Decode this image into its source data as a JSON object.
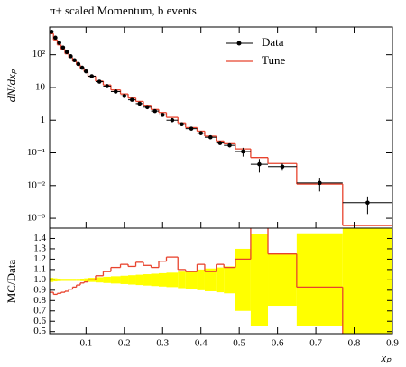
{
  "chart_data": {
    "type": "histogram-ratio",
    "title": "π± scaled Momentum, b events",
    "ylabel": "dN/dxₚ",
    "ratio_ylabel": "MC/Data",
    "xlabel": "xₚ",
    "xlim": [
      0.005,
      0.9
    ],
    "xticks": [
      0.1,
      0.2,
      0.3,
      0.4,
      0.5,
      0.6,
      0.7,
      0.8,
      0.9
    ],
    "ylim": [
      0.0005,
      700
    ],
    "log_y": true,
    "yticks": [
      {
        "value": 100,
        "label": "10²"
      },
      10,
      1,
      {
        "value": 0.1,
        "label": "10⁻¹"
      },
      {
        "value": 0.01,
        "label": "10⁻²"
      },
      {
        "value": 0.001,
        "label": "10⁻³"
      }
    ],
    "ratio_ylim": [
      0.48,
      1.5
    ],
    "ratio_yticks": [
      0.5,
      0.6,
      0.7,
      0.8,
      0.9,
      {
        "value": 1.0,
        "label": "1.0"
      },
      1.1,
      1.2,
      1.3,
      1.4
    ],
    "band_color": "#ffff00",
    "series": [
      {
        "name": "Data",
        "color": "#000000",
        "x": [
          0.01,
          0.02,
          0.03,
          0.04,
          0.05,
          0.06,
          0.07,
          0.08,
          0.09,
          0.1,
          0.115,
          0.135,
          0.155,
          0.1775,
          0.2,
          0.22,
          0.24,
          0.26,
          0.28,
          0.3,
          0.325,
          0.35,
          0.375,
          0.4,
          0.425,
          0.45,
          0.475,
          0.51,
          0.5525,
          0.6125,
          0.71,
          0.835
        ],
        "xerr": [
          0.005,
          0.005,
          0.005,
          0.005,
          0.005,
          0.005,
          0.005,
          0.005,
          0.005,
          0.005,
          0.01,
          0.01,
          0.01,
          0.0125,
          0.01,
          0.01,
          0.01,
          0.01,
          0.01,
          0.01,
          0.015,
          0.01,
          0.015,
          0.01,
          0.015,
          0.01,
          0.015,
          0.02,
          0.0225,
          0.0375,
          0.06,
          0.065
        ],
        "values": [
          500,
          330,
          230,
          165,
          120,
          90,
          68,
          52,
          40,
          31,
          22,
          15,
          11,
          7.5,
          5.5,
          4.2,
          3.2,
          2.5,
          1.9,
          1.45,
          1.0,
          0.75,
          0.55,
          0.4,
          0.3,
          0.2,
          0.17,
          0.11,
          0.045,
          0.038,
          0.012,
          0.003
        ],
        "yerr": [
          10,
          4.95,
          2.76,
          1.65,
          1.2,
          0.9,
          0.68,
          0.52,
          0.48,
          0.465,
          0.44,
          0.375,
          0.33,
          0.2625,
          0.22,
          0.189,
          0.16,
          0.1375,
          0.114,
          0.094,
          0.07,
          0.06,
          0.0495,
          0.04,
          0.033,
          0.024,
          0.0221,
          0.033,
          0.02,
          0.0095,
          0.0054,
          0.00165
        ]
      },
      {
        "name": "Tune",
        "color": "#e8432d",
        "bins": [
          0.005,
          0.015,
          0.025,
          0.035,
          0.045,
          0.055,
          0.065,
          0.075,
          0.085,
          0.095,
          0.105,
          0.125,
          0.145,
          0.165,
          0.19,
          0.21,
          0.23,
          0.25,
          0.27,
          0.29,
          0.31,
          0.34,
          0.36,
          0.39,
          0.41,
          0.44,
          0.46,
          0.49,
          0.53,
          0.575,
          0.65,
          0.77,
          0.9
        ],
        "values": [
          440,
          283.8,
          200.1,
          145.2,
          106.8,
          81.9,
          63.24,
          49.4,
          38.8,
          30.38,
          22,
          15.6,
          11.88,
          8.4,
          6.325,
          4.746,
          3.744,
          2.85,
          2.128,
          1.711,
          1.22,
          0.825,
          0.594,
          0.46,
          0.324,
          0.23,
          0.1904,
          0.132,
          0.072,
          0.0475,
          0.01116,
          0.0006
        ]
      }
    ]
  }
}
